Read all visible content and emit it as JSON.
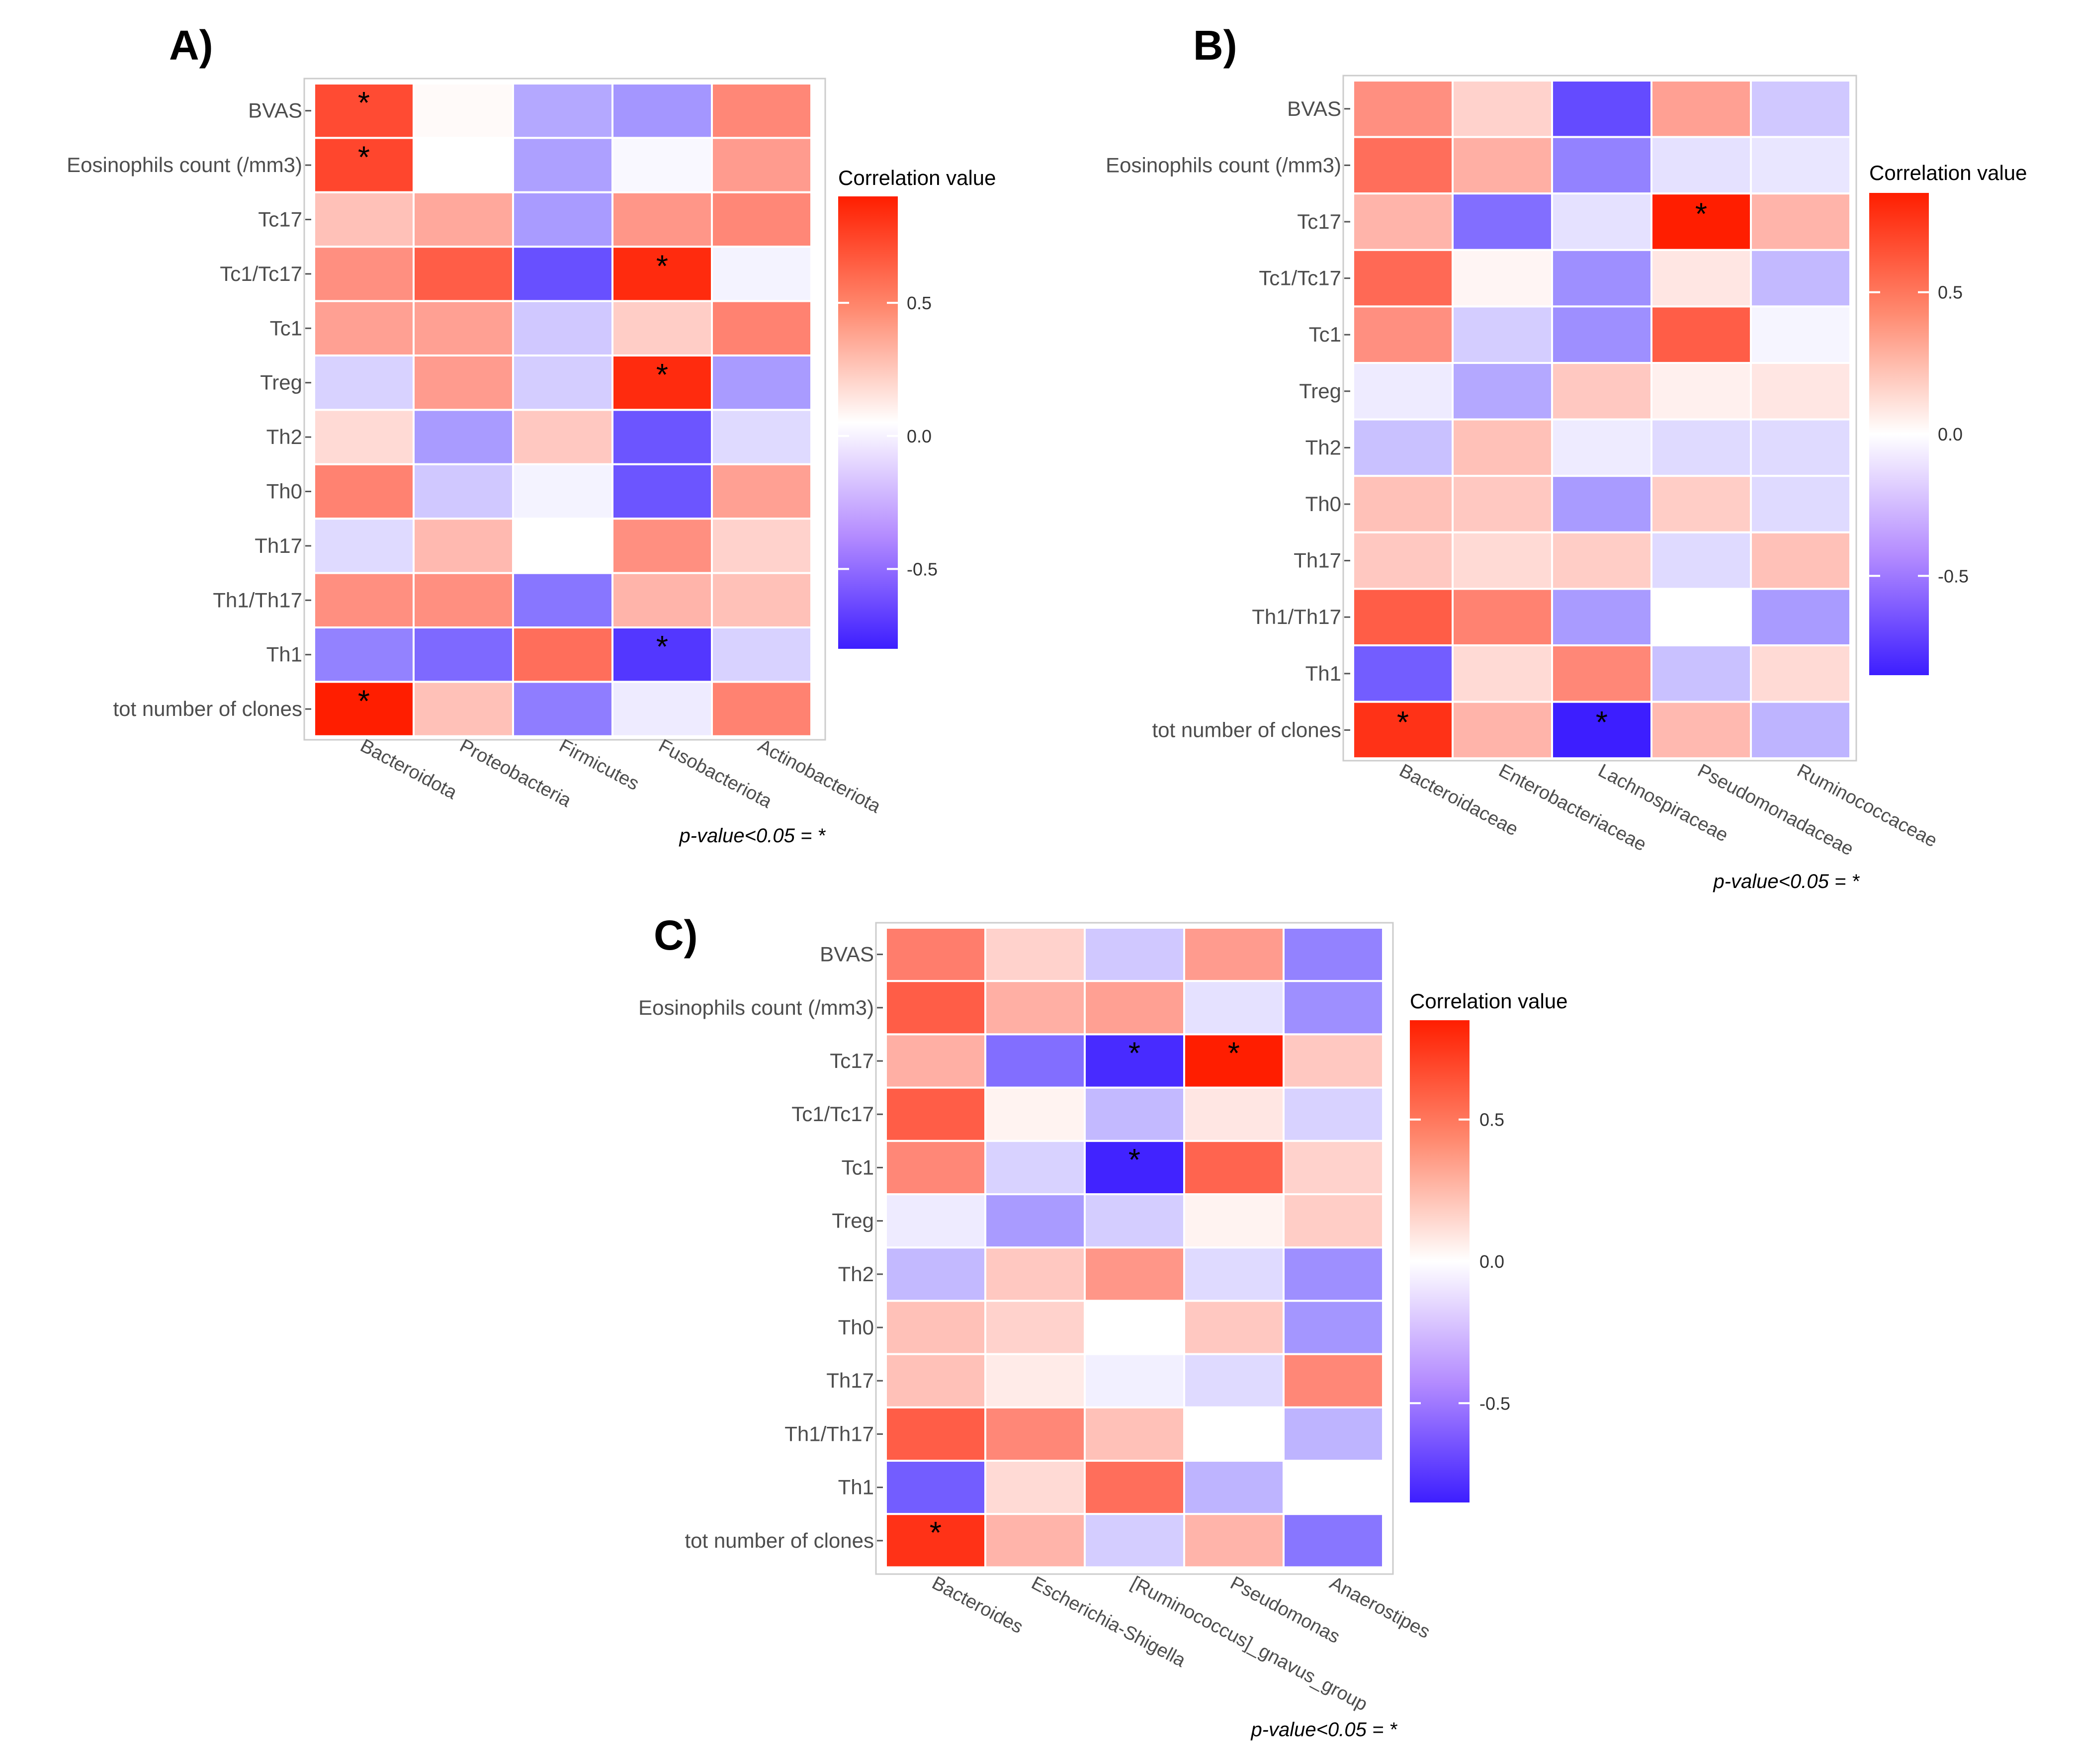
{
  "figure": {
    "pvalue_note": "p-value<0.05 = *",
    "legend_title": "Correlation value",
    "legend_ticks": [
      0.5,
      0.0,
      -0.5
    ],
    "legend_tick_labels": [
      "0.5",
      "0.0",
      "-0.5"
    ],
    "colors": {
      "positive": "#ff0000",
      "neutral": "#ffffff",
      "negative": "#3311ff"
    }
  },
  "chart_data": [
    {
      "type": "heatmap",
      "panel": "A)",
      "rows": [
        "BVAS",
        "Eosinophils count (/mm3)",
        "Tc17",
        "Tc1/Tc17",
        "Tc1",
        "Treg",
        "Th2",
        "Th0",
        "Th17",
        "Th1/Th17",
        "Th1",
        "tot number of clones"
      ],
      "columns": [
        "Bacteroidota",
        "Proteobacteria",
        "Firmicutes",
        "Fusobacteriota",
        "Actinobacteriota"
      ],
      "values": [
        [
          0.72,
          0.02,
          -0.35,
          -0.42,
          0.48
        ],
        [
          0.74,
          0.0,
          -0.38,
          -0.03,
          0.4
        ],
        [
          0.25,
          0.35,
          -0.4,
          0.42,
          0.48
        ],
        [
          0.45,
          0.65,
          -0.7,
          0.85,
          -0.05
        ],
        [
          0.38,
          0.38,
          -0.22,
          0.2,
          0.5
        ],
        [
          -0.18,
          0.4,
          -0.2,
          0.85,
          -0.4
        ],
        [
          0.15,
          -0.4,
          0.22,
          -0.68,
          -0.15
        ],
        [
          0.5,
          -0.22,
          -0.05,
          -0.68,
          0.38
        ],
        [
          -0.15,
          0.28,
          0.0,
          0.45,
          0.18
        ],
        [
          0.45,
          0.45,
          -0.55,
          0.3,
          0.25
        ],
        [
          -0.5,
          -0.6,
          0.58,
          -0.8,
          -0.18
        ],
        [
          0.9,
          0.25,
          -0.52,
          -0.08,
          0.5
        ]
      ],
      "significant": [
        [
          0,
          0
        ],
        [
          1,
          0
        ],
        [
          3,
          3
        ],
        [
          5,
          3
        ],
        [
          10,
          3
        ],
        [
          11,
          0
        ]
      ],
      "scale_range": [
        -0.8,
        0.9
      ]
    },
    {
      "type": "heatmap",
      "panel": "B)",
      "rows": [
        "BVAS",
        "Eosinophils count (/mm3)",
        "Tc17",
        "Tc1/Tc17",
        "Tc1",
        "Treg",
        "Th2",
        "Th0",
        "Th17",
        "Th1/Th17",
        "Th1",
        "tot number of clones"
      ],
      "columns": [
        "Bacteroidaceae",
        "Enterobacteriaceae",
        "Lachnospiraceae",
        "Pseudomonadaceae",
        "Ruminococcaceae"
      ],
      "values": [
        [
          0.45,
          0.18,
          -0.72,
          0.38,
          -0.22
        ],
        [
          0.58,
          0.32,
          -0.5,
          -0.12,
          -0.1
        ],
        [
          0.3,
          -0.58,
          -0.12,
          0.95,
          0.3
        ],
        [
          0.6,
          0.04,
          -0.45,
          0.1,
          -0.28
        ],
        [
          0.45,
          -0.2,
          -0.45,
          0.65,
          -0.04
        ],
        [
          -0.08,
          -0.35,
          0.22,
          0.06,
          0.1
        ],
        [
          -0.25,
          0.25,
          -0.08,
          -0.15,
          -0.15
        ],
        [
          0.25,
          0.22,
          -0.4,
          0.2,
          -0.15
        ],
        [
          0.22,
          0.15,
          0.2,
          -0.15,
          0.25
        ],
        [
          0.65,
          0.5,
          -0.4,
          0.0,
          -0.4
        ],
        [
          -0.65,
          0.15,
          0.48,
          -0.25,
          0.15
        ],
        [
          0.82,
          0.3,
          -0.9,
          0.28,
          -0.3
        ]
      ],
      "significant": [
        [
          2,
          3
        ],
        [
          11,
          0
        ],
        [
          11,
          2
        ]
      ],
      "scale_range": [
        -0.85,
        0.85
      ]
    },
    {
      "type": "heatmap",
      "panel": "C)",
      "rows": [
        "BVAS",
        "Eosinophils count (/mm3)",
        "Tc17",
        "Tc1/Tc17",
        "Tc1",
        "Treg",
        "Th2",
        "Th0",
        "Th17",
        "Th1/Th17",
        "Th1",
        "tot number of clones"
      ],
      "columns": [
        "Bacteroides",
        "Escherichia-Shigella",
        "[Ruminococcus]_gnavus_group",
        "Pseudomonas",
        "Anaerostipes"
      ],
      "values": [
        [
          0.52,
          0.18,
          -0.22,
          0.4,
          -0.5
        ],
        [
          0.65,
          0.32,
          0.38,
          -0.12,
          -0.45
        ],
        [
          0.32,
          -0.58,
          -0.85,
          0.9,
          0.22
        ],
        [
          0.65,
          0.05,
          -0.28,
          0.1,
          -0.18
        ],
        [
          0.48,
          -0.18,
          -0.88,
          0.62,
          0.18
        ],
        [
          -0.08,
          -0.4,
          -0.2,
          0.05,
          0.2
        ],
        [
          -0.28,
          0.22,
          0.42,
          -0.15,
          -0.45
        ],
        [
          0.25,
          0.18,
          0.0,
          0.22,
          -0.42
        ],
        [
          0.25,
          0.08,
          -0.06,
          -0.15,
          0.48
        ],
        [
          0.65,
          0.48,
          0.25,
          0.0,
          -0.3
        ],
        [
          -0.65,
          0.15,
          0.58,
          -0.3,
          0.0
        ],
        [
          0.82,
          0.3,
          -0.2,
          0.3,
          -0.55
        ]
      ],
      "significant": [
        [
          2,
          2
        ],
        [
          2,
          3
        ],
        [
          4,
          2
        ],
        [
          11,
          0
        ]
      ],
      "scale_range": [
        -0.85,
        0.85
      ]
    }
  ]
}
